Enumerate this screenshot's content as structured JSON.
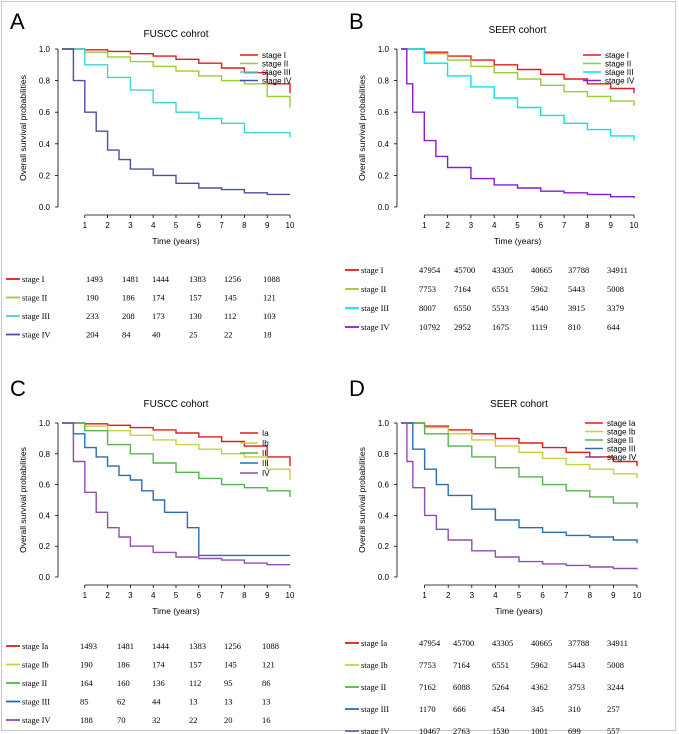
{
  "chart_data": [
    {
      "type": "line",
      "panel_label": "A",
      "title": "FUSCC cohrot",
      "xlabel": "Time (years)",
      "ylabel": "Overall survival probabilities",
      "xlim": [
        0,
        10
      ],
      "ylim": [
        0,
        1
      ],
      "xticks": [
        "1",
        "2",
        "3",
        "4",
        "5",
        "6",
        "7",
        "8",
        "9",
        "10"
      ],
      "yticks": [
        "0.0",
        "0.2",
        "0.4",
        "0.6",
        "0.8",
        "1.0"
      ],
      "legend_position": "top-right",
      "series": [
        {
          "name": "stage I",
          "color": "#e41a1c",
          "x": [
            0,
            1,
            2,
            3,
            4,
            5,
            6,
            7,
            8,
            9,
            10
          ],
          "y": [
            1.0,
            0.995,
            0.985,
            0.97,
            0.955,
            0.935,
            0.91,
            0.88,
            0.85,
            0.78,
            0.72
          ]
        },
        {
          "name": "stage II",
          "color": "#9acd32",
          "x": [
            0,
            1,
            2,
            3,
            4,
            5,
            6,
            7,
            8,
            9,
            10
          ],
          "y": [
            1.0,
            0.98,
            0.95,
            0.92,
            0.89,
            0.86,
            0.83,
            0.8,
            0.78,
            0.7,
            0.63
          ]
        },
        {
          "name": "stage III",
          "color": "#40d4d4",
          "x": [
            0,
            1,
            2,
            3,
            4,
            5,
            6,
            7,
            8,
            9,
            10
          ],
          "y": [
            1.0,
            0.9,
            0.82,
            0.74,
            0.66,
            0.6,
            0.56,
            0.53,
            0.47,
            0.47,
            0.44
          ]
        },
        {
          "name": "stage IV",
          "color": "#4a4fa8",
          "x": [
            0,
            0.5,
            1,
            1.5,
            2,
            2.5,
            3,
            4,
            5,
            6,
            7,
            8,
            9,
            10
          ],
          "y": [
            1.0,
            0.8,
            0.6,
            0.48,
            0.36,
            0.3,
            0.24,
            0.2,
            0.15,
            0.12,
            0.11,
            0.09,
            0.08,
            0.08
          ]
        }
      ],
      "risk_table": [
        {
          "label": "stage I",
          "color": "#e41a1c",
          "values": [
            "1493",
            "1481",
            "1444",
            "1383",
            "1256",
            "1088"
          ]
        },
        {
          "label": "stage II",
          "color": "#9acd32",
          "values": [
            "190",
            "186",
            "174",
            "157",
            "145",
            "121"
          ]
        },
        {
          "label": "stage III",
          "color": "#40d4d4",
          "values": [
            "233",
            "208",
            "173",
            "130",
            "112",
            "103"
          ]
        },
        {
          "label": "stage IV",
          "color": "#4a4fa8",
          "values": [
            "204",
            "84",
            "40",
            "25",
            "22",
            "18"
          ]
        }
      ]
    },
    {
      "type": "line",
      "panel_label": "B",
      "title": "SEER cohort",
      "xlabel": "Time (years)",
      "ylabel": "Overall survival probabilities",
      "xlim": [
        0,
        10
      ],
      "ylim": [
        0,
        1
      ],
      "xticks": [
        "1",
        "2",
        "3",
        "4",
        "5",
        "6",
        "7",
        "8",
        "9",
        "10"
      ],
      "yticks": [
        "0.0",
        "0.2",
        "0.4",
        "0.6",
        "0.8",
        "1.0"
      ],
      "legend_position": "top-right",
      "series": [
        {
          "name": "stage I",
          "color": "#e41a1c",
          "x": [
            0,
            1,
            2,
            3,
            4,
            5,
            6,
            7,
            8,
            9,
            10
          ],
          "y": [
            1.0,
            0.98,
            0.955,
            0.93,
            0.9,
            0.87,
            0.84,
            0.81,
            0.78,
            0.75,
            0.72
          ]
        },
        {
          "name": "stage II",
          "color": "#9acd32",
          "x": [
            0,
            1,
            2,
            3,
            4,
            5,
            6,
            7,
            8,
            9,
            10
          ],
          "y": [
            1.0,
            0.97,
            0.93,
            0.89,
            0.85,
            0.81,
            0.77,
            0.73,
            0.7,
            0.67,
            0.64
          ]
        },
        {
          "name": "stage III",
          "color": "#00e5ee",
          "x": [
            0,
            1,
            2,
            3,
            4,
            5,
            6,
            7,
            8,
            9,
            10
          ],
          "y": [
            1.0,
            0.91,
            0.83,
            0.76,
            0.69,
            0.63,
            0.58,
            0.53,
            0.49,
            0.45,
            0.42
          ]
        },
        {
          "name": "stage IV",
          "color": "#8b1ad6",
          "x": [
            0,
            0.25,
            0.5,
            1,
            1.5,
            2,
            3,
            4,
            5,
            6,
            7,
            8,
            9,
            10
          ],
          "y": [
            1.0,
            0.78,
            0.6,
            0.42,
            0.32,
            0.25,
            0.18,
            0.14,
            0.12,
            0.1,
            0.09,
            0.08,
            0.065,
            0.055
          ]
        }
      ],
      "risk_table": [
        {
          "label": "stage I",
          "color": "#e41a1c",
          "values": [
            "47954",
            "45700",
            "43305",
            "40665",
            "37788",
            "34911"
          ]
        },
        {
          "label": "stage II",
          "color": "#9acd32",
          "values": [
            "7753",
            "7164",
            "6551",
            "5962",
            "5443",
            "5008"
          ]
        },
        {
          "label": "stage III",
          "color": "#00e5ee",
          "values": [
            "8007",
            "6550",
            "5533",
            "4540",
            "3915",
            "3379"
          ]
        },
        {
          "label": "stage IV",
          "color": "#8b1ad6",
          "values": [
            "10792",
            "2952",
            "1675",
            "1119",
            "810",
            "644"
          ]
        }
      ]
    },
    {
      "type": "line",
      "panel_label": "C",
      "title": "FUSCC cohort",
      "xlabel": "Time (years)",
      "ylabel": "Overall survival probabilities",
      "xlim": [
        0,
        10
      ],
      "ylim": [
        0,
        1
      ],
      "xticks": [
        "1",
        "2",
        "3",
        "4",
        "5",
        "6",
        "7",
        "8",
        "9",
        "10"
      ],
      "yticks": [
        "0.0",
        "0.2",
        "0.4",
        "0.6",
        "0.8",
        "1.0"
      ],
      "legend_position": "top-right",
      "series": [
        {
          "name": "Ia",
          "color": "#e41a1c",
          "x": [
            0,
            1,
            2,
            3,
            4,
            5,
            6,
            7,
            8,
            9,
            10
          ],
          "y": [
            1.0,
            0.995,
            0.985,
            0.97,
            0.955,
            0.935,
            0.91,
            0.88,
            0.85,
            0.78,
            0.72
          ]
        },
        {
          "name": "Ib",
          "color": "#c8d040",
          "x": [
            0,
            1,
            2,
            3,
            4,
            5,
            6,
            7,
            8,
            9,
            10
          ],
          "y": [
            1.0,
            0.98,
            0.95,
            0.92,
            0.89,
            0.86,
            0.83,
            0.8,
            0.78,
            0.7,
            0.63
          ]
        },
        {
          "name": "II",
          "color": "#55b44f",
          "x": [
            0,
            1,
            2,
            3,
            4,
            5,
            6,
            7,
            8,
            9,
            10
          ],
          "y": [
            1.0,
            0.95,
            0.86,
            0.8,
            0.74,
            0.68,
            0.64,
            0.6,
            0.58,
            0.56,
            0.52
          ]
        },
        {
          "name": "III",
          "color": "#2a6db5",
          "x": [
            0,
            0.5,
            1,
            1.5,
            2,
            2.5,
            3,
            3.5,
            4,
            4.5,
            5,
            5.5,
            5.9,
            6,
            10
          ],
          "y": [
            1.0,
            0.93,
            0.84,
            0.78,
            0.72,
            0.66,
            0.63,
            0.56,
            0.5,
            0.42,
            0.42,
            0.32,
            0.32,
            0.14,
            0.14
          ]
        },
        {
          "name": "IV",
          "color": "#8e4fb0",
          "x": [
            0,
            0.5,
            1,
            1.5,
            2,
            2.5,
            3,
            4,
            5,
            6,
            7,
            8,
            9,
            10
          ],
          "y": [
            1.0,
            0.75,
            0.55,
            0.42,
            0.32,
            0.26,
            0.2,
            0.16,
            0.13,
            0.12,
            0.11,
            0.09,
            0.08,
            0.08
          ]
        }
      ],
      "risk_table": [
        {
          "label": "stage Ia",
          "color": "#e41a1c",
          "values": [
            "1493",
            "1481",
            "1444",
            "1383",
            "1256",
            "1088"
          ]
        },
        {
          "label": "stage Ib",
          "color": "#c8d040",
          "values": [
            "190",
            "186",
            "174",
            "157",
            "145",
            "121"
          ]
        },
        {
          "label": "stage II",
          "color": "#55b44f",
          "values": [
            "164",
            "160",
            "136",
            "112",
            "95",
            "86"
          ]
        },
        {
          "label": "stage III",
          "color": "#2a6db5",
          "values": [
            "85",
            "62",
            "44",
            "13",
            "13",
            "13"
          ]
        },
        {
          "label": "stage IV",
          "color": "#8e4fb0",
          "values": [
            "188",
            "70",
            "32",
            "22",
            "20",
            "16"
          ]
        }
      ]
    },
    {
      "type": "line",
      "panel_label": "D",
      "title": "SEER cohort",
      "xlabel": "Time (years)",
      "ylabel": "Overall survival probabilities",
      "xlim": [
        0,
        10
      ],
      "ylim": [
        0,
        1
      ],
      "xticks": [
        "1",
        "2",
        "3",
        "4",
        "5",
        "6",
        "7",
        "8",
        "9",
        "10"
      ],
      "yticks": [
        "0.0",
        "0.2",
        "0.4",
        "0.6",
        "0.8",
        "1.0"
      ],
      "legend_position": "top-right",
      "series": [
        {
          "name": "stage Ia",
          "color": "#e41a1c",
          "x": [
            0,
            1,
            2,
            3,
            4,
            5,
            6,
            7,
            8,
            9,
            10
          ],
          "y": [
            1.0,
            0.98,
            0.955,
            0.93,
            0.9,
            0.87,
            0.84,
            0.81,
            0.78,
            0.75,
            0.72
          ]
        },
        {
          "name": "stage Ib",
          "color": "#c8d040",
          "x": [
            0,
            1,
            2,
            3,
            4,
            5,
            6,
            7,
            8,
            9,
            10
          ],
          "y": [
            1.0,
            0.97,
            0.93,
            0.89,
            0.85,
            0.81,
            0.77,
            0.73,
            0.7,
            0.67,
            0.64
          ]
        },
        {
          "name": "stage II",
          "color": "#55b44f",
          "x": [
            0,
            1,
            2,
            3,
            4,
            5,
            6,
            7,
            8,
            9,
            10
          ],
          "y": [
            1.0,
            0.93,
            0.85,
            0.78,
            0.71,
            0.65,
            0.6,
            0.56,
            0.52,
            0.48,
            0.45
          ]
        },
        {
          "name": "stage III",
          "color": "#2a6db5",
          "x": [
            0,
            0.5,
            1,
            1.5,
            2,
            3,
            4,
            5,
            6,
            7,
            8,
            9,
            10
          ],
          "y": [
            1.0,
            0.83,
            0.7,
            0.6,
            0.53,
            0.44,
            0.37,
            0.32,
            0.29,
            0.27,
            0.26,
            0.24,
            0.22
          ]
        },
        {
          "name": "stage IV",
          "color": "#8e4fb0",
          "x": [
            0,
            0.25,
            0.5,
            1,
            1.5,
            2,
            3,
            4,
            5,
            6,
            7,
            8,
            9,
            10
          ],
          "y": [
            1.0,
            0.75,
            0.58,
            0.4,
            0.31,
            0.24,
            0.17,
            0.13,
            0.1,
            0.085,
            0.075,
            0.065,
            0.055,
            0.05
          ]
        }
      ],
      "risk_table": [
        {
          "label": "stage Ia",
          "color": "#e41a1c",
          "values": [
            "47954",
            "45700",
            "43305",
            "40665",
            "37788",
            "34911"
          ]
        },
        {
          "label": "stage Ib",
          "color": "#c8d040",
          "values": [
            "7753",
            "7164",
            "6551",
            "5962",
            "5443",
            "5008"
          ]
        },
        {
          "label": "stage II",
          "color": "#55b44f",
          "values": [
            "7162",
            "6088",
            "5264",
            "4362",
            "3753",
            "3244"
          ]
        },
        {
          "label": "stage III",
          "color": "#2a6db5",
          "values": [
            "1170",
            "666",
            "454",
            "345",
            "310",
            "257"
          ]
        },
        {
          "label": "stage IV",
          "color": "#8e4fb0",
          "values": [
            "10467",
            "2763",
            "1530",
            "1001",
            "699",
            "557"
          ]
        }
      ]
    }
  ]
}
